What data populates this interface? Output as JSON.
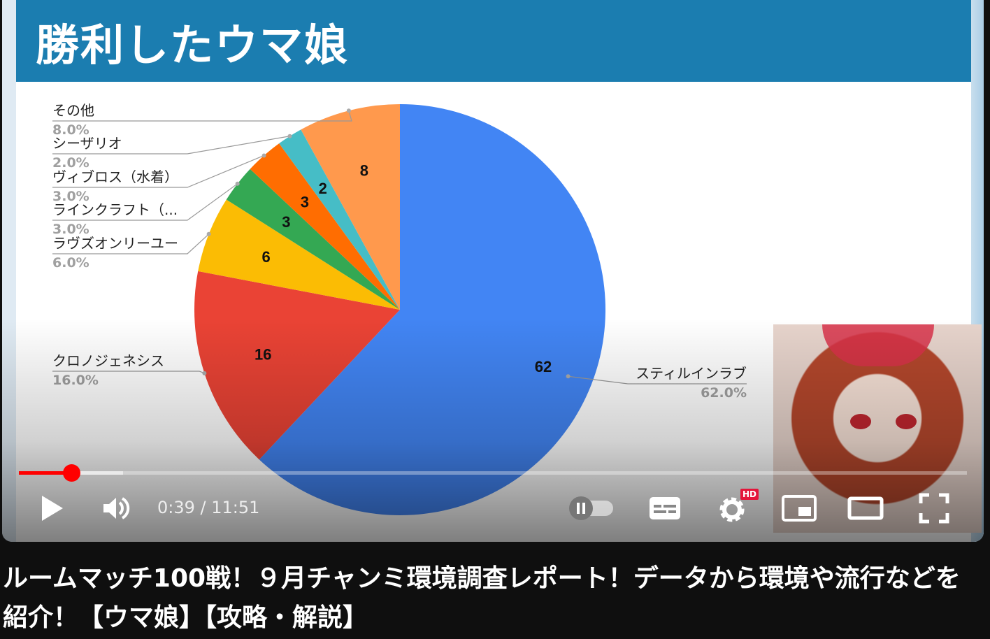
{
  "slide": {
    "title": "勝利したウマ娘"
  },
  "chart_data": {
    "type": "pie",
    "title": "",
    "start": "top",
    "direction": "clockwise",
    "slices": [
      {
        "label": "スティルインラブ",
        "value": 62,
        "percent": "62.0%",
        "color": "#4285f4"
      },
      {
        "label": "クロノジェネシス",
        "value": 16,
        "percent": "16.0%",
        "color": "#ea4335"
      },
      {
        "label": "ラヴズオンリーユー",
        "value": 6,
        "percent": "6.0%",
        "color": "#fbbc04"
      },
      {
        "label": "ラインクラフト（...",
        "value": 3,
        "percent": "3.0%",
        "color": "#34a853"
      },
      {
        "label": "ヴィブロス（水着）",
        "value": 3,
        "percent": "3.0%",
        "color": "#ff6d01"
      },
      {
        "label": "シーザリオ",
        "value": 2,
        "percent": "2.0%",
        "color": "#46bdc6"
      },
      {
        "label": "その他",
        "value": 8,
        "percent": "8.0%",
        "color": "#ff994d"
      }
    ]
  },
  "player": {
    "current_time": "0:39",
    "duration": "11:51",
    "time_display": "0:39 / 11:51",
    "progress_percent": 5.5,
    "buffered_percent": 11,
    "autoplay_on": false,
    "quality_badge": "HD",
    "accent_color": "#ff0000",
    "icons": [
      "play-icon",
      "volume-icon",
      "autoplay-toggle",
      "subtitles-icon",
      "settings-icon",
      "miniplayer-icon",
      "theater-icon",
      "fullscreen-icon"
    ]
  },
  "video": {
    "title": "ルームマッチ100戦！９月チャンミ環境調査レポート！データから環境や流行などを紹介！【ウマ娘】【攻略・解説】"
  }
}
